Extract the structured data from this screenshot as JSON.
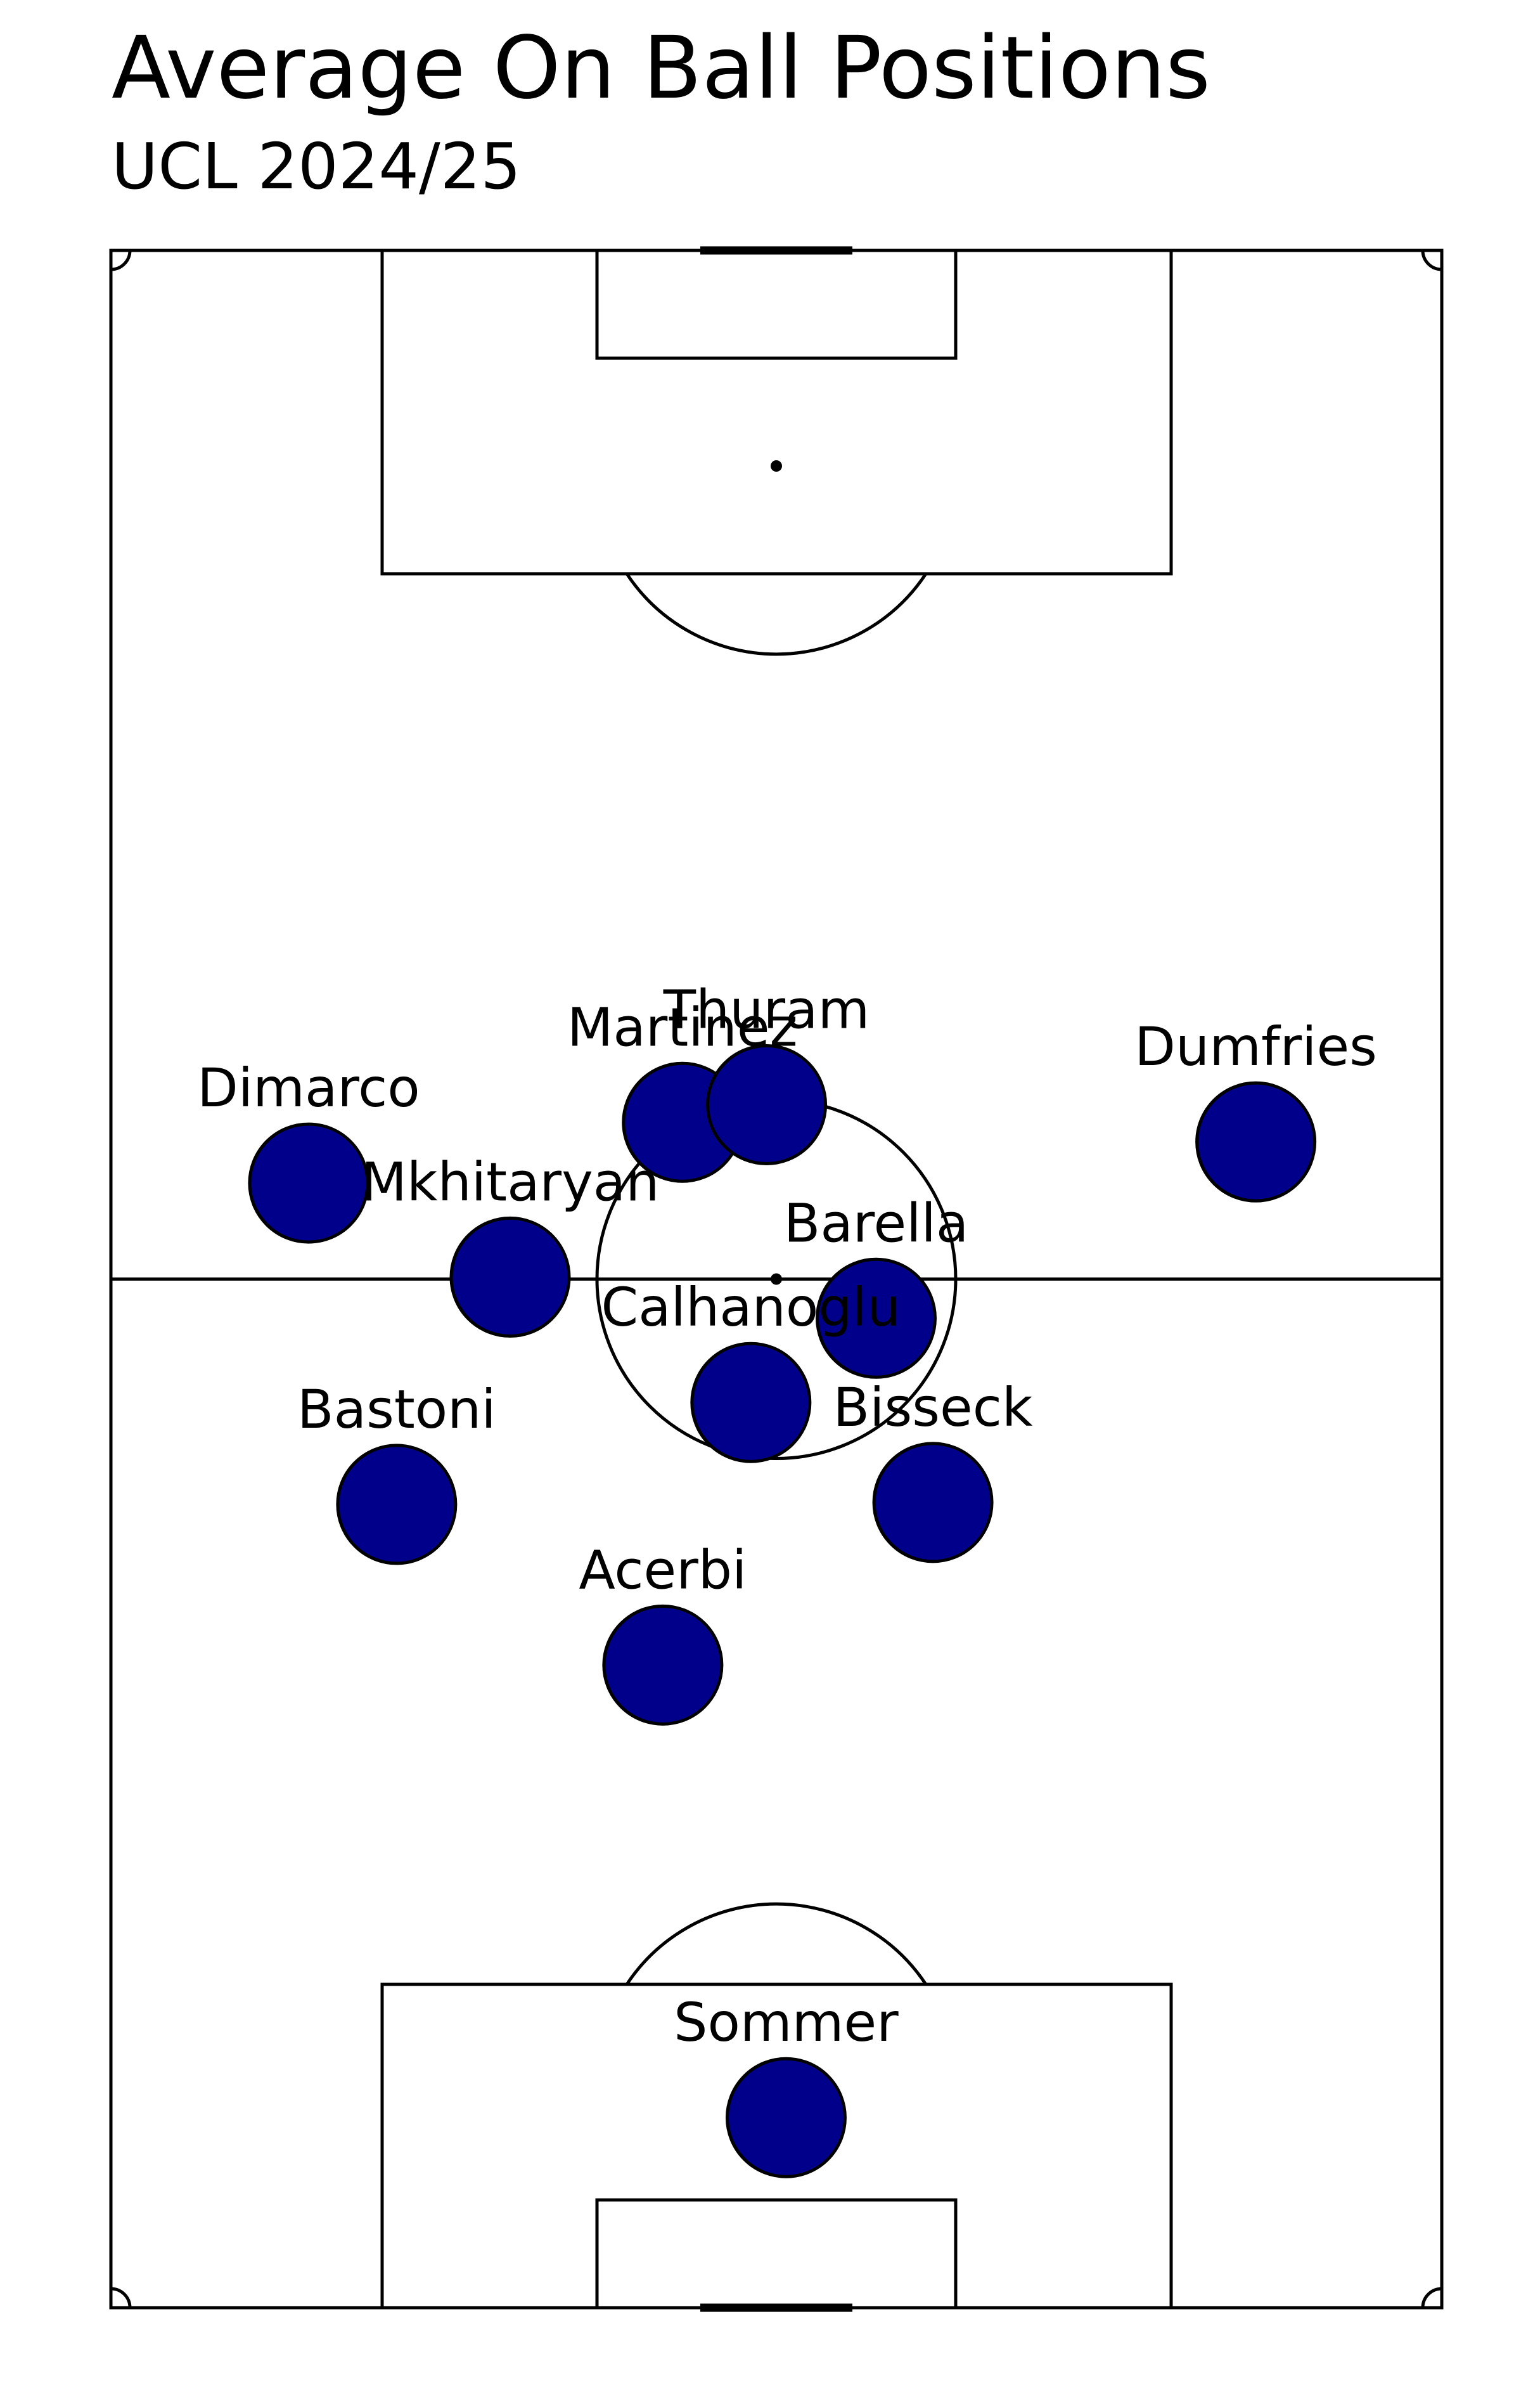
{
  "header": {
    "title": "Average On Ball Positions",
    "subtitle": "UCL 2024/25"
  },
  "colors": {
    "marker_fill": "#00008b",
    "marker_edge": "#000000",
    "line": "#000000",
    "background": "#ffffff"
  },
  "chart_data": {
    "type": "scatter",
    "title": "Average On Ball Positions",
    "subtitle": "UCL 2024/25",
    "xlabel": "",
    "ylabel": "",
    "xlim": [
      0,
      68
    ],
    "ylim": [
      0,
      105
    ],
    "grid": false,
    "players": [
      {
        "name": "Sommer",
        "x": 34.5,
        "y": 9.7
      },
      {
        "name": "Acerbi",
        "x": 28.2,
        "y": 32.8
      },
      {
        "name": "Bisseck",
        "x": 42.0,
        "y": 41.1
      },
      {
        "name": "Bastoni",
        "x": 14.6,
        "y": 41.0
      },
      {
        "name": "Calhanoglu",
        "x": 32.7,
        "y": 46.2
      },
      {
        "name": "Barella",
        "x": 39.1,
        "y": 50.5
      },
      {
        "name": "Mkhitaryan",
        "x": 20.4,
        "y": 52.6
      },
      {
        "name": "Dimarco",
        "x": 10.1,
        "y": 57.4
      },
      {
        "name": "Martinez",
        "x": 29.2,
        "y": 60.5
      },
      {
        "name": "Thuram",
        "x": 33.5,
        "y": 61.4
      },
      {
        "name": "Dumfries",
        "x": 58.5,
        "y": 59.5
      }
    ]
  }
}
